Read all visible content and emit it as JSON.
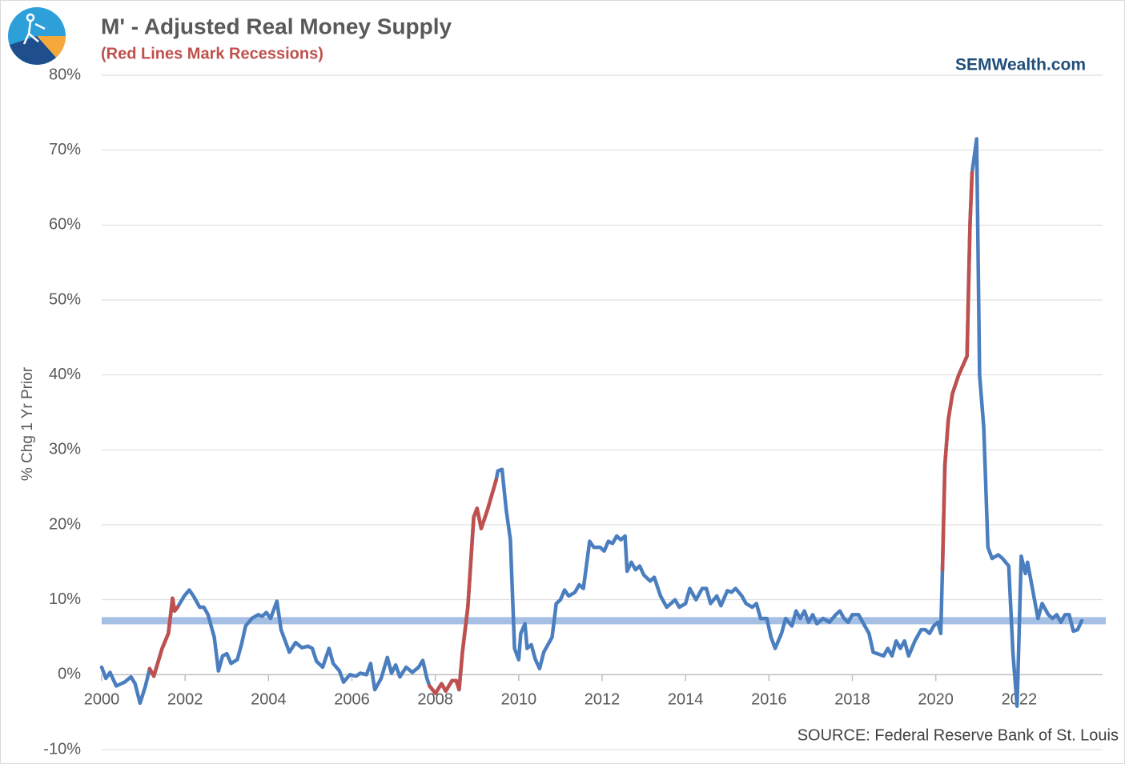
{
  "chart_data": {
    "type": "line",
    "title": "M' - Adjusted Real Money Supply",
    "subtitle": "(Red Lines Mark Recessions)",
    "brand": "SEMWealth.com",
    "source": "SOURCE:  Federal Reserve Bank of St. Louis",
    "ylabel": "% Chg 1 Yr Prior",
    "xlim": [
      2000,
      2024
    ],
    "xticks": [
      2000,
      2002,
      2004,
      2006,
      2008,
      2010,
      2012,
      2014,
      2016,
      2018,
      2020,
      2022
    ],
    "ylim": [
      -10,
      80
    ],
    "yticks": [
      {
        "value": -10,
        "label": "-10%"
      },
      {
        "value": 0,
        "label": "0%"
      },
      {
        "value": 10,
        "label": "10%"
      },
      {
        "value": 20,
        "label": "20%"
      },
      {
        "value": 30,
        "label": "30%"
      },
      {
        "value": 40,
        "label": "40%"
      },
      {
        "value": 50,
        "label": "50%"
      },
      {
        "value": 60,
        "label": "60%"
      },
      {
        "value": 70,
        "label": "70%"
      },
      {
        "value": 80,
        "label": "80%"
      }
    ],
    "grid": true,
    "reference_line": {
      "value": 7.2,
      "color": "#a6c0e3"
    },
    "series": [
      {
        "color": "#4a7ebf",
        "x": [
          2000.0,
          2000.1,
          2000.2,
          2000.35,
          2000.55,
          2000.7,
          2000.8,
          2000.92,
          2001.05,
          2001.15,
          2001.25,
          2001.45,
          2001.6,
          2001.7,
          2001.75,
          2001.82,
          2001.98,
          2002.1,
          2002.2,
          2002.35,
          2002.45,
          2002.55,
          2002.7,
          2002.8,
          2002.9,
          2003.0,
          2003.1,
          2003.25,
          2003.35,
          2003.45,
          2003.6,
          2003.75,
          2003.85,
          2003.95,
          2004.05,
          2004.2,
          2004.3,
          2004.4,
          2004.5,
          2004.65,
          2004.8,
          2004.95,
          2005.05,
          2005.15,
          2005.3,
          2005.45,
          2005.55,
          2005.7,
          2005.8,
          2005.95,
          2006.1,
          2006.2,
          2006.35,
          2006.45,
          2006.55,
          2006.7,
          2006.85,
          2006.95,
          2007.05,
          2007.15,
          2007.3,
          2007.45,
          2007.6,
          2007.7,
          2007.8,
          2007.86,
          2008.0,
          2008.15,
          2008.25,
          2008.4,
          2008.5,
          2008.57,
          2008.65,
          2008.78,
          2008.92,
          2009.0,
          2009.1,
          2009.25,
          2009.46,
          2009.5,
          2009.6,
          2009.7,
          2009.8,
          2009.9,
          2010.0,
          2010.05,
          2010.15,
          2010.2,
          2010.3,
          2010.4,
          2010.5,
          2010.6,
          2010.8,
          2010.9,
          2011.0,
          2011.1,
          2011.2,
          2011.35,
          2011.45,
          2011.55,
          2011.7,
          2011.8,
          2011.95,
          2012.05,
          2012.15,
          2012.25,
          2012.35,
          2012.45,
          2012.55,
          2012.6,
          2012.7,
          2012.8,
          2012.9,
          2013.0,
          2013.15,
          2013.25,
          2013.4,
          2013.55,
          2013.65,
          2013.75,
          2013.85,
          2014.0,
          2014.1,
          2014.25,
          2014.4,
          2014.5,
          2014.6,
          2014.75,
          2014.85,
          2015.0,
          2015.1,
          2015.2,
          2015.35,
          2015.45,
          2015.6,
          2015.7,
          2015.8,
          2015.95,
          2016.05,
          2016.15,
          2016.3,
          2016.4,
          2016.55,
          2016.65,
          2016.75,
          2016.85,
          2016.95,
          2017.05,
          2017.15,
          2017.3,
          2017.45,
          2017.6,
          2017.7,
          2017.8,
          2017.9,
          2018.0,
          2018.15,
          2018.3,
          2018.4,
          2018.5,
          2018.6,
          2018.75,
          2018.85,
          2018.95,
          2019.05,
          2019.15,
          2019.25,
          2019.35,
          2019.5,
          2019.65,
          2019.75,
          2019.85,
          2019.95,
          2020.05,
          2020.12,
          2020.16,
          2020.22,
          2020.3,
          2020.4,
          2020.55,
          2020.75,
          2020.82,
          2020.87,
          2020.98,
          2021.05,
          2021.15,
          2021.25,
          2021.35,
          2021.5,
          2021.6,
          2021.75,
          2021.85,
          2021.95,
          2022.05,
          2022.15,
          2022.2,
          2022.3,
          2022.45,
          2022.55,
          2022.7,
          2022.8,
          2022.9,
          2023.0,
          2023.1,
          2023.2,
          2023.3,
          2023.4,
          2023.5
        ],
        "values": [
          1.0,
          -0.5,
          0.3,
          -1.5,
          -1.0,
          -0.3,
          -1.2,
          -3.8,
          -1.5,
          0.8,
          -0.2,
          3.5,
          5.5,
          10.2,
          8.5,
          9,
          10.5,
          11.3,
          10.5,
          9,
          9,
          8,
          5,
          0.5,
          2.5,
          2.8,
          1.5,
          2,
          4,
          6.5,
          7.5,
          8,
          7.8,
          8.3,
          7.5,
          9.8,
          6,
          4.5,
          3,
          4.3,
          3.6,
          3.8,
          3.5,
          1.8,
          1.0,
          3.5,
          1.5,
          0.5,
          -1.0,
          0,
          -0.2,
          0.2,
          0,
          1.5,
          -2.0,
          -0.5,
          2.3,
          0.2,
          1.3,
          -0.3,
          1.0,
          0.3,
          1.0,
          1.9,
          -0.5,
          -1.5,
          -2.5,
          -1.2,
          -2.2,
          -0.8,
          -0.8,
          -2,
          3,
          9,
          21,
          22.2,
          19.5,
          22,
          26,
          27.2,
          27.4,
          22,
          18,
          3.5,
          2.0,
          5.5,
          6.8,
          3.5,
          4,
          2,
          0.8,
          3,
          5,
          9.5,
          10,
          11.3,
          10.5,
          11,
          12,
          11.5,
          17.8,
          17,
          17,
          16.5,
          17.8,
          17.5,
          18.5,
          18,
          18.5,
          13.8,
          15,
          14,
          14.5,
          13.3,
          12.5,
          13,
          10.5,
          9,
          9.5,
          10,
          9,
          9.5,
          11.5,
          10,
          11.5,
          11.5,
          9.5,
          10.5,
          9.2,
          11.2,
          11,
          11.5,
          10.5,
          9.5,
          9,
          9.5,
          7.5,
          7.5,
          5,
          3.5,
          5.5,
          7.5,
          6.5,
          8.5,
          7.5,
          8.5,
          7,
          8,
          6.8,
          7.5,
          7,
          8,
          8.5,
          7.5,
          7,
          8,
          8,
          6.5,
          5.5,
          3,
          2.8,
          2.5,
          3.5,
          2.5,
          4.5,
          3.5,
          4.5,
          2.5,
          4.5,
          6,
          6,
          5.5,
          6.5,
          7,
          5.5,
          14,
          28,
          34,
          37.5,
          40,
          42.5,
          60,
          67,
          71.5,
          40,
          33,
          17,
          15.5,
          16,
          15.5,
          14.5,
          3,
          -4.2,
          15.8,
          13.5,
          15,
          12,
          7.5,
          9.5,
          8,
          7.5,
          8,
          7,
          8,
          8,
          5.8,
          6,
          7.2
        ]
      },
      {
        "color": "#c0504d",
        "x": [
          2001.15,
          2001.25,
          2001.45,
          2001.6,
          2001.7,
          2001.75,
          2001.82
        ],
        "values": [
          0.8,
          -0.2,
          3.5,
          5.5,
          10.2,
          8.5,
          9
        ]
      },
      {
        "color": "#c0504d",
        "x": [
          2007.86,
          2008.0,
          2008.15,
          2008.25,
          2008.4,
          2008.5,
          2008.57,
          2008.65,
          2008.78,
          2008.92,
          2009.0,
          2009.1,
          2009.25,
          2009.46
        ],
        "values": [
          -1.5,
          -2.5,
          -1.2,
          -2.2,
          -0.8,
          -0.8,
          -2,
          3,
          9,
          21,
          22.2,
          19.5,
          22,
          26
        ]
      },
      {
        "color": "#c0504d",
        "x": [
          2020.16,
          2020.22,
          2020.3,
          2020.4,
          2020.55,
          2020.75,
          2020.82,
          2020.87
        ],
        "values": [
          14,
          28,
          34,
          37.5,
          40,
          42.5,
          60,
          67
        ]
      }
    ]
  }
}
